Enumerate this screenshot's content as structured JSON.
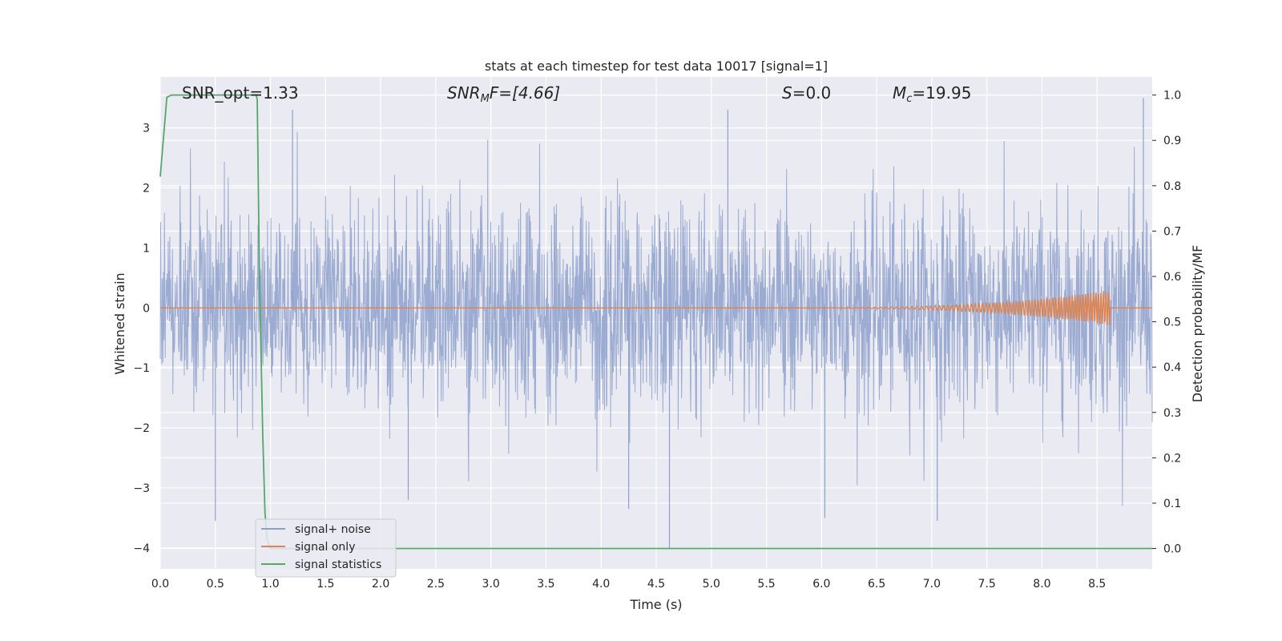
{
  "chart_data": {
    "type": "line",
    "title": "stats at each timestep for test data 10017 [signal=1]",
    "xlabel": "Time (s)",
    "ylabel": "Whitened strain",
    "y2label": "Detection probability/MF",
    "xlim": [
      0,
      9.0
    ],
    "ylim": [
      -4.35,
      3.85
    ],
    "y2lim": [
      -0.045,
      1.04
    ],
    "xticks": [
      "0.0",
      "0.5",
      "1.0",
      "1.5",
      "2.0",
      "2.5",
      "3.0",
      "3.5",
      "4.0",
      "4.5",
      "5.0",
      "5.5",
      "6.0",
      "6.5",
      "7.0",
      "7.5",
      "8.0",
      "8.5"
    ],
    "yticks": [
      "3",
      "2",
      "1",
      "0",
      "−1",
      "−2",
      "−3",
      "−4"
    ],
    "y2ticks": [
      "1.0",
      "0.9",
      "0.8",
      "0.7",
      "0.6",
      "0.5",
      "0.4",
      "0.3",
      "0.2",
      "0.1",
      "0.0"
    ],
    "grid": true,
    "legend_position": "lower-left",
    "annotations": {
      "snr_opt": "SNR_opt=1.33",
      "snr_mf_base": "SNR",
      "snr_mf_sub": "M",
      "snr_mf_rest": "F=[4.66]",
      "s_sym": "S",
      "s_rest": "=0.0",
      "mc_base": "M",
      "mc_sub": "c",
      "mc_rest": "=19.95"
    },
    "series": [
      {
        "name": "signal+ noise",
        "axis": "left",
        "color": "#8da0cb",
        "description_values": {
          "x_range": [
            0,
            9.0
          ],
          "core_band": [
            -1.0,
            1.2
          ],
          "typical_peaks": [
            -2.6,
            2.9
          ],
          "notable_extremes": [
            {
              "x": 0.5,
              "y": -3.55
            },
            {
              "x": 2.25,
              "y": -3.2
            },
            {
              "x": 4.25,
              "y": -3.35
            },
            {
              "x": 4.62,
              "y": -4.0
            },
            {
              "x": 6.03,
              "y": -3.5
            },
            {
              "x": 7.05,
              "y": -3.55
            },
            {
              "x": 1.2,
              "y": 3.3
            },
            {
              "x": 5.15,
              "y": 3.3
            },
            {
              "x": 8.92,
              "y": 3.5
            }
          ]
        }
      },
      {
        "name": "signal only",
        "axis": "left",
        "color": "#dd8452",
        "chirp": {
          "start_x": 5.5,
          "end_x": 8.62,
          "max_amplitude": 0.3
        }
      },
      {
        "name": "signal statistics",
        "axis": "right",
        "color": "#55a868",
        "x": [
          0.0,
          0.06,
          0.1,
          0.2,
          0.87,
          0.88,
          0.9,
          0.93,
          0.95,
          0.97,
          1.0,
          9.0
        ],
        "values": [
          0.82,
          0.995,
          1.0,
          1.0,
          1.0,
          0.99,
          0.6,
          0.25,
          0.08,
          0.02,
          0.0,
          0.0
        ]
      }
    ]
  }
}
